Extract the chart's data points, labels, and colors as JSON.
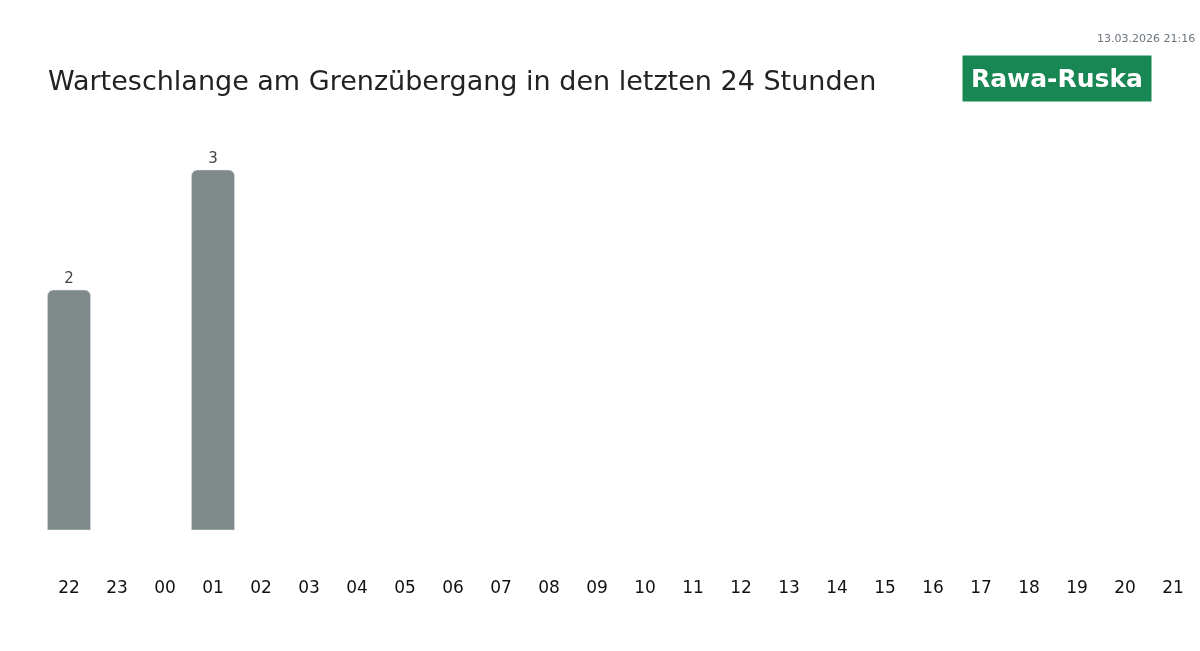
{
  "chart_data": {
    "type": "bar",
    "title": "Warteschlange am Grenzübergang in den letzten 24 Stunden",
    "subtitle": "Rawa-Ruska",
    "annotations": [
      "13.03.2026 21:16"
    ],
    "categories": [
      "22",
      "23",
      "00",
      "01",
      "02",
      "03",
      "04",
      "05",
      "06",
      "07",
      "08",
      "09",
      "10",
      "11",
      "12",
      "13",
      "14",
      "15",
      "16",
      "17",
      "18",
      "19",
      "20",
      "21"
    ],
    "values": [
      2,
      null,
      null,
      3,
      null,
      null,
      null,
      null,
      null,
      null,
      null,
      null,
      null,
      null,
      null,
      null,
      null,
      null,
      null,
      null,
      null,
      null,
      null,
      null
    ],
    "color": "#7f8b8a",
    "data_labels": true
  }
}
